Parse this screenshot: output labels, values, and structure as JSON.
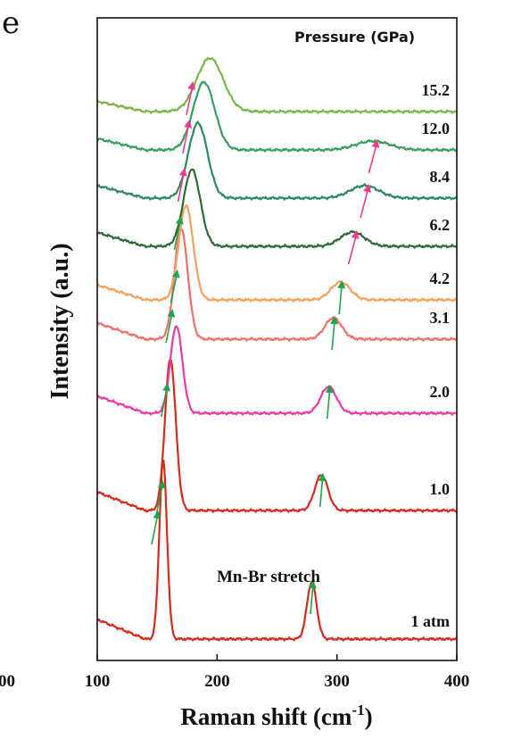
{
  "panel_label": "e",
  "chart_data": {
    "type": "line",
    "title": "",
    "xlabel": "Raman shift (cm",
    "xlabel_superscript": "-1",
    "xlabel_close": ")",
    "ylabel": "Intensity (a.u.)",
    "xlim": [
      100,
      400
    ],
    "x_ticks": [
      100,
      200,
      300,
      400
    ],
    "x_tick_labels": [
      "100",
      "200",
      "300",
      "400"
    ],
    "clipped_tick_label": "00",
    "y_ticks": "none",
    "legend_title": "Pressure (GPa)",
    "annotation": "Mn-Br stretch",
    "series": [
      {
        "name": "1 atm",
        "color": "#d42a1e",
        "peak1": {
          "pos": 155,
          "height": 1.0,
          "width": 3.2
        },
        "peak2": {
          "pos": 279,
          "height": 0.32,
          "width": 4.0
        },
        "arrows": [
          {
            "x": 148,
            "color": "#22a24a"
          },
          {
            "x": 279,
            "color": "#22a24a"
          }
        ]
      },
      {
        "name": "1.0",
        "color": "#d42a1e",
        "peak1": {
          "pos": 161,
          "height": 0.85,
          "width": 4.5
        },
        "peak2": {
          "pos": 287,
          "height": 0.2,
          "width": 5.5
        },
        "arrows": [
          {
            "x": 152,
            "color": "#22a24a"
          },
          {
            "x": 287,
            "color": "#22a24a"
          }
        ]
      },
      {
        "name": "2.0",
        "color": "#ee3aa0",
        "peak1": {
          "pos": 166,
          "height": 0.49,
          "width": 5.0
        },
        "peak2": {
          "pos": 293,
          "height": 0.15,
          "width": 6.5
        },
        "arrows": [
          {
            "x": 156,
            "color": "#22a24a"
          },
          {
            "x": 293,
            "color": "#22a24a"
          }
        ]
      },
      {
        "name": "3.1",
        "color": "#ef6f6a",
        "peak1": {
          "pos": 170,
          "height": 0.62,
          "width": 5.5
        },
        "peak2": {
          "pos": 297,
          "height": 0.12,
          "width": 7.0
        },
        "arrows": [
          {
            "x": 160,
            "color": "#22a24a"
          },
          {
            "x": 297,
            "color": "#22a24a"
          }
        ]
      },
      {
        "name": "4.2",
        "color": "#f7a05a",
        "peak1": {
          "pos": 174,
          "height": 0.53,
          "width": 6.0
        },
        "peak2": {
          "pos": 303,
          "height": 0.1,
          "width": 8.0
        },
        "arrows": [
          {
            "x": 164,
            "color": "#22a24a"
          },
          {
            "x": 303,
            "color": "#22a24a"
          }
        ]
      },
      {
        "name": "6.2",
        "color": "#2e6a31",
        "peak1": {
          "pos": 179,
          "height": 0.43,
          "width": 7.0
        },
        "peak2": {
          "pos": 313,
          "height": 0.08,
          "width": 10.0
        },
        "arrows": [
          {
            "x": 167,
            "color": "#22a24a"
          },
          {
            "x": 313,
            "color": "#ee3a8f"
          }
        ]
      },
      {
        "name": "8.4",
        "color": "#2b8a5e",
        "peak1": {
          "pos": 184,
          "height": 0.42,
          "width": 8.0
        },
        "peak2": {
          "pos": 323,
          "height": 0.07,
          "width": 12.0
        },
        "arrows": [
          {
            "x": 170,
            "color": "#ee3a8f"
          },
          {
            "x": 323,
            "color": "#ee3a8f"
          }
        ]
      },
      {
        "name": "12.0",
        "color": "#36a05a",
        "peak1": {
          "pos": 189,
          "height": 0.38,
          "width": 9.0
        },
        "peak2": {
          "pos": 330,
          "height": 0.05,
          "width": 14.0
        },
        "arrows": [
          {
            "x": 174,
            "color": "#ee3a8f"
          },
          {
            "x": 330,
            "color": "#ee3a8f"
          }
        ]
      },
      {
        "name": "15.2",
        "color": "#7ab648",
        "peak1": {
          "pos": 194,
          "height": 0.3,
          "width": 11.0
        },
        "peak2": null,
        "arrows": [
          {
            "x": 177,
            "color": "#ee3a8f"
          }
        ]
      }
    ]
  }
}
